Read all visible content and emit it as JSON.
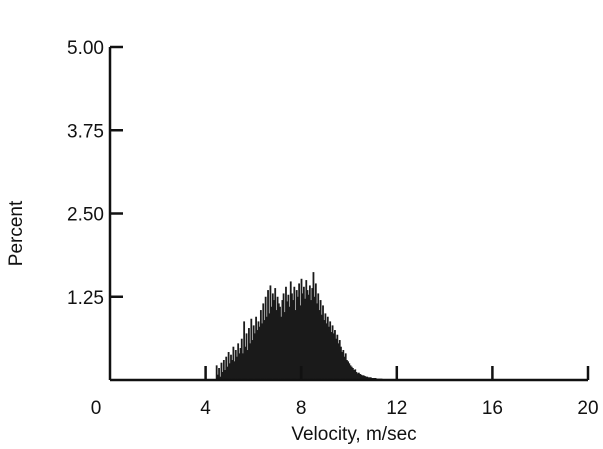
{
  "chart_data": {
    "type": "bar",
    "xlabel": "Velocity, m/sec",
    "ylabel": "Percent",
    "xlim": [
      0,
      20
    ],
    "ylim": [
      0,
      5.0
    ],
    "x_ticks": [
      "0",
      "4",
      "8",
      "12",
      "16",
      "20"
    ],
    "y_ticks": [
      "1.25",
      "2.50",
      "3.75",
      "5.00"
    ],
    "bin_width": 0.05,
    "grid": false,
    "x": [
      4.45,
      4.5,
      4.55,
      4.6,
      4.65,
      4.7,
      4.75,
      4.8,
      4.85,
      4.9,
      4.95,
      5.0,
      5.05,
      5.1,
      5.15,
      5.2,
      5.25,
      5.3,
      5.35,
      5.4,
      5.45,
      5.5,
      5.55,
      5.6,
      5.65,
      5.7,
      5.75,
      5.8,
      5.85,
      5.9,
      5.95,
      6.0,
      6.05,
      6.1,
      6.15,
      6.2,
      6.25,
      6.3,
      6.35,
      6.4,
      6.45,
      6.5,
      6.55,
      6.6,
      6.65,
      6.7,
      6.75,
      6.8,
      6.85,
      6.9,
      6.95,
      7.0,
      7.05,
      7.1,
      7.15,
      7.2,
      7.25,
      7.3,
      7.35,
      7.4,
      7.45,
      7.5,
      7.55,
      7.6,
      7.65,
      7.7,
      7.75,
      7.8,
      7.85,
      7.9,
      7.95,
      8.0,
      8.05,
      8.1,
      8.15,
      8.2,
      8.25,
      8.3,
      8.35,
      8.4,
      8.45,
      8.5,
      8.55,
      8.6,
      8.65,
      8.7,
      8.75,
      8.8,
      8.85,
      8.9,
      8.95,
      9.0,
      9.05,
      9.1,
      9.15,
      9.2,
      9.25,
      9.3,
      9.35,
      9.4,
      9.45,
      9.5,
      9.55,
      9.6,
      9.65,
      9.7,
      9.75,
      9.8,
      9.85,
      9.9,
      9.95,
      10.0,
      10.05,
      10.1,
      10.15,
      10.2,
      10.25,
      10.3,
      10.35,
      10.4,
      10.45,
      10.5,
      10.55,
      10.6,
      10.65,
      10.7,
      10.75,
      10.8,
      10.85,
      10.9,
      10.95,
      11.0,
      11.05,
      11.1,
      11.15,
      11.2,
      11.25,
      11.3,
      11.35,
      11.4,
      11.45
    ],
    "values": [
      0.22,
      0.08,
      0.18,
      0.05,
      0.26,
      0.12,
      0.3,
      0.15,
      0.35,
      0.2,
      0.42,
      0.25,
      0.38,
      0.3,
      0.5,
      0.28,
      0.45,
      0.35,
      0.55,
      0.4,
      0.48,
      0.62,
      0.4,
      0.88,
      0.5,
      0.7,
      0.45,
      0.78,
      0.55,
      0.92,
      0.6,
      0.82,
      0.7,
      0.95,
      0.75,
      0.88,
      0.8,
      1.05,
      0.85,
      1.15,
      0.9,
      1.25,
      0.95,
      1.35,
      1.0,
      1.42,
      1.1,
      1.3,
      1.2,
      1.38,
      1.05,
      1.25,
      1.15,
      1.1,
      0.95,
      1.2,
      1.3,
      1.02,
      1.4,
      1.18,
      1.28,
      1.1,
      1.48,
      1.3,
      1.2,
      1.4,
      1.05,
      1.35,
      1.25,
      1.45,
      1.12,
      1.52,
      1.3,
      1.4,
      1.22,
      1.5,
      1.35,
      1.28,
      1.42,
      1.2,
      1.38,
      1.62,
      1.25,
      1.45,
      1.15,
      1.3,
      1.05,
      1.2,
      0.98,
      1.12,
      0.9,
      1.0,
      0.85,
      0.95,
      0.8,
      0.88,
      0.72,
      0.82,
      0.7,
      0.75,
      0.62,
      0.68,
      0.55,
      0.6,
      0.5,
      0.42,
      0.45,
      0.35,
      0.4,
      0.3,
      0.28,
      0.25,
      0.22,
      0.2,
      0.18,
      0.15,
      0.16,
      0.12,
      0.1,
      0.11,
      0.09,
      0.08,
      0.07,
      0.07,
      0.06,
      0.05,
      0.05,
      0.04,
      0.04,
      0.04,
      0.03,
      0.03,
      0.03,
      0.03,
      0.02,
      0.02,
      0.02,
      0.02,
      0.02,
      0.01,
      0.01
    ]
  }
}
